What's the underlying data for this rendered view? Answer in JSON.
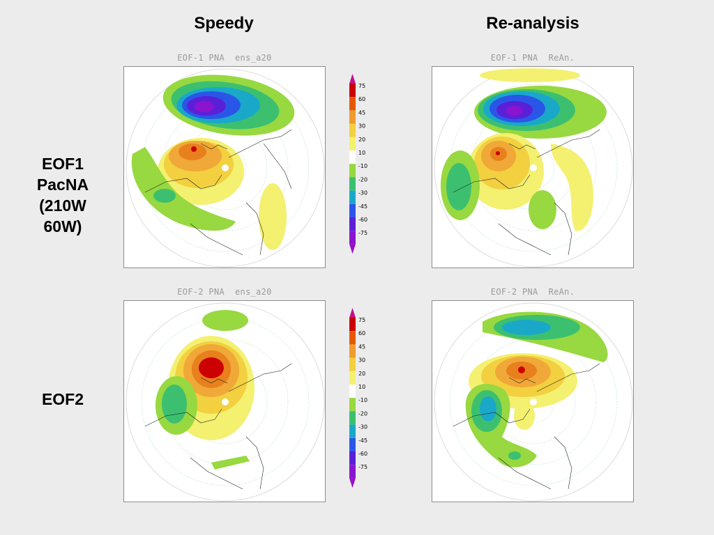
{
  "columns": [
    {
      "title": "Speedy"
    },
    {
      "title": "Re-analysis"
    }
  ],
  "rows": [
    {
      "label_lines": [
        "EOF1",
        "PacNA",
        "(210W",
        "60W)"
      ]
    },
    {
      "label_lines": [
        "EOF2"
      ]
    }
  ],
  "maps": {
    "eof1_speedy": {
      "title": "EOF-1 PNA  ens_a20"
    },
    "eof1_rean": {
      "title": "EOF-1 PNA  ReAn."
    },
    "eof2_speedy": {
      "title": "EOF-2 PNA  ens_a20"
    },
    "eof2_rean": {
      "title": "EOF-2 PNA  ReAn."
    }
  },
  "colorbar": {
    "labels": [
      "75",
      "60",
      "45",
      "30",
      "20",
      "10",
      "-10",
      "-20",
      "-30",
      "-45",
      "-60",
      "-75"
    ],
    "colors": [
      "#cc0000",
      "#e35a00",
      "#ef9b30",
      "#f2d040",
      "#f4f070",
      "#ffffff",
      "#98d840",
      "#3cc070",
      "#1aa8c8",
      "#2a56e8",
      "#5a20d8",
      "#8a14d0"
    ],
    "top_arrow_color": "#c0138a",
    "bottom_arrow_color": "#9a10c8"
  },
  "legend_palette": {
    "red": "#cc0000",
    "orange": "#e8801e",
    "light_orange": "#f0a838",
    "yellow": "#f2d040",
    "pale_yellow": "#f4f070",
    "green": "#98d840",
    "teal": "#3cc070",
    "cyan": "#1aa8c8",
    "blue": "#2a56e8",
    "indigo": "#5a20d8",
    "violet": "#8a14d0"
  }
}
